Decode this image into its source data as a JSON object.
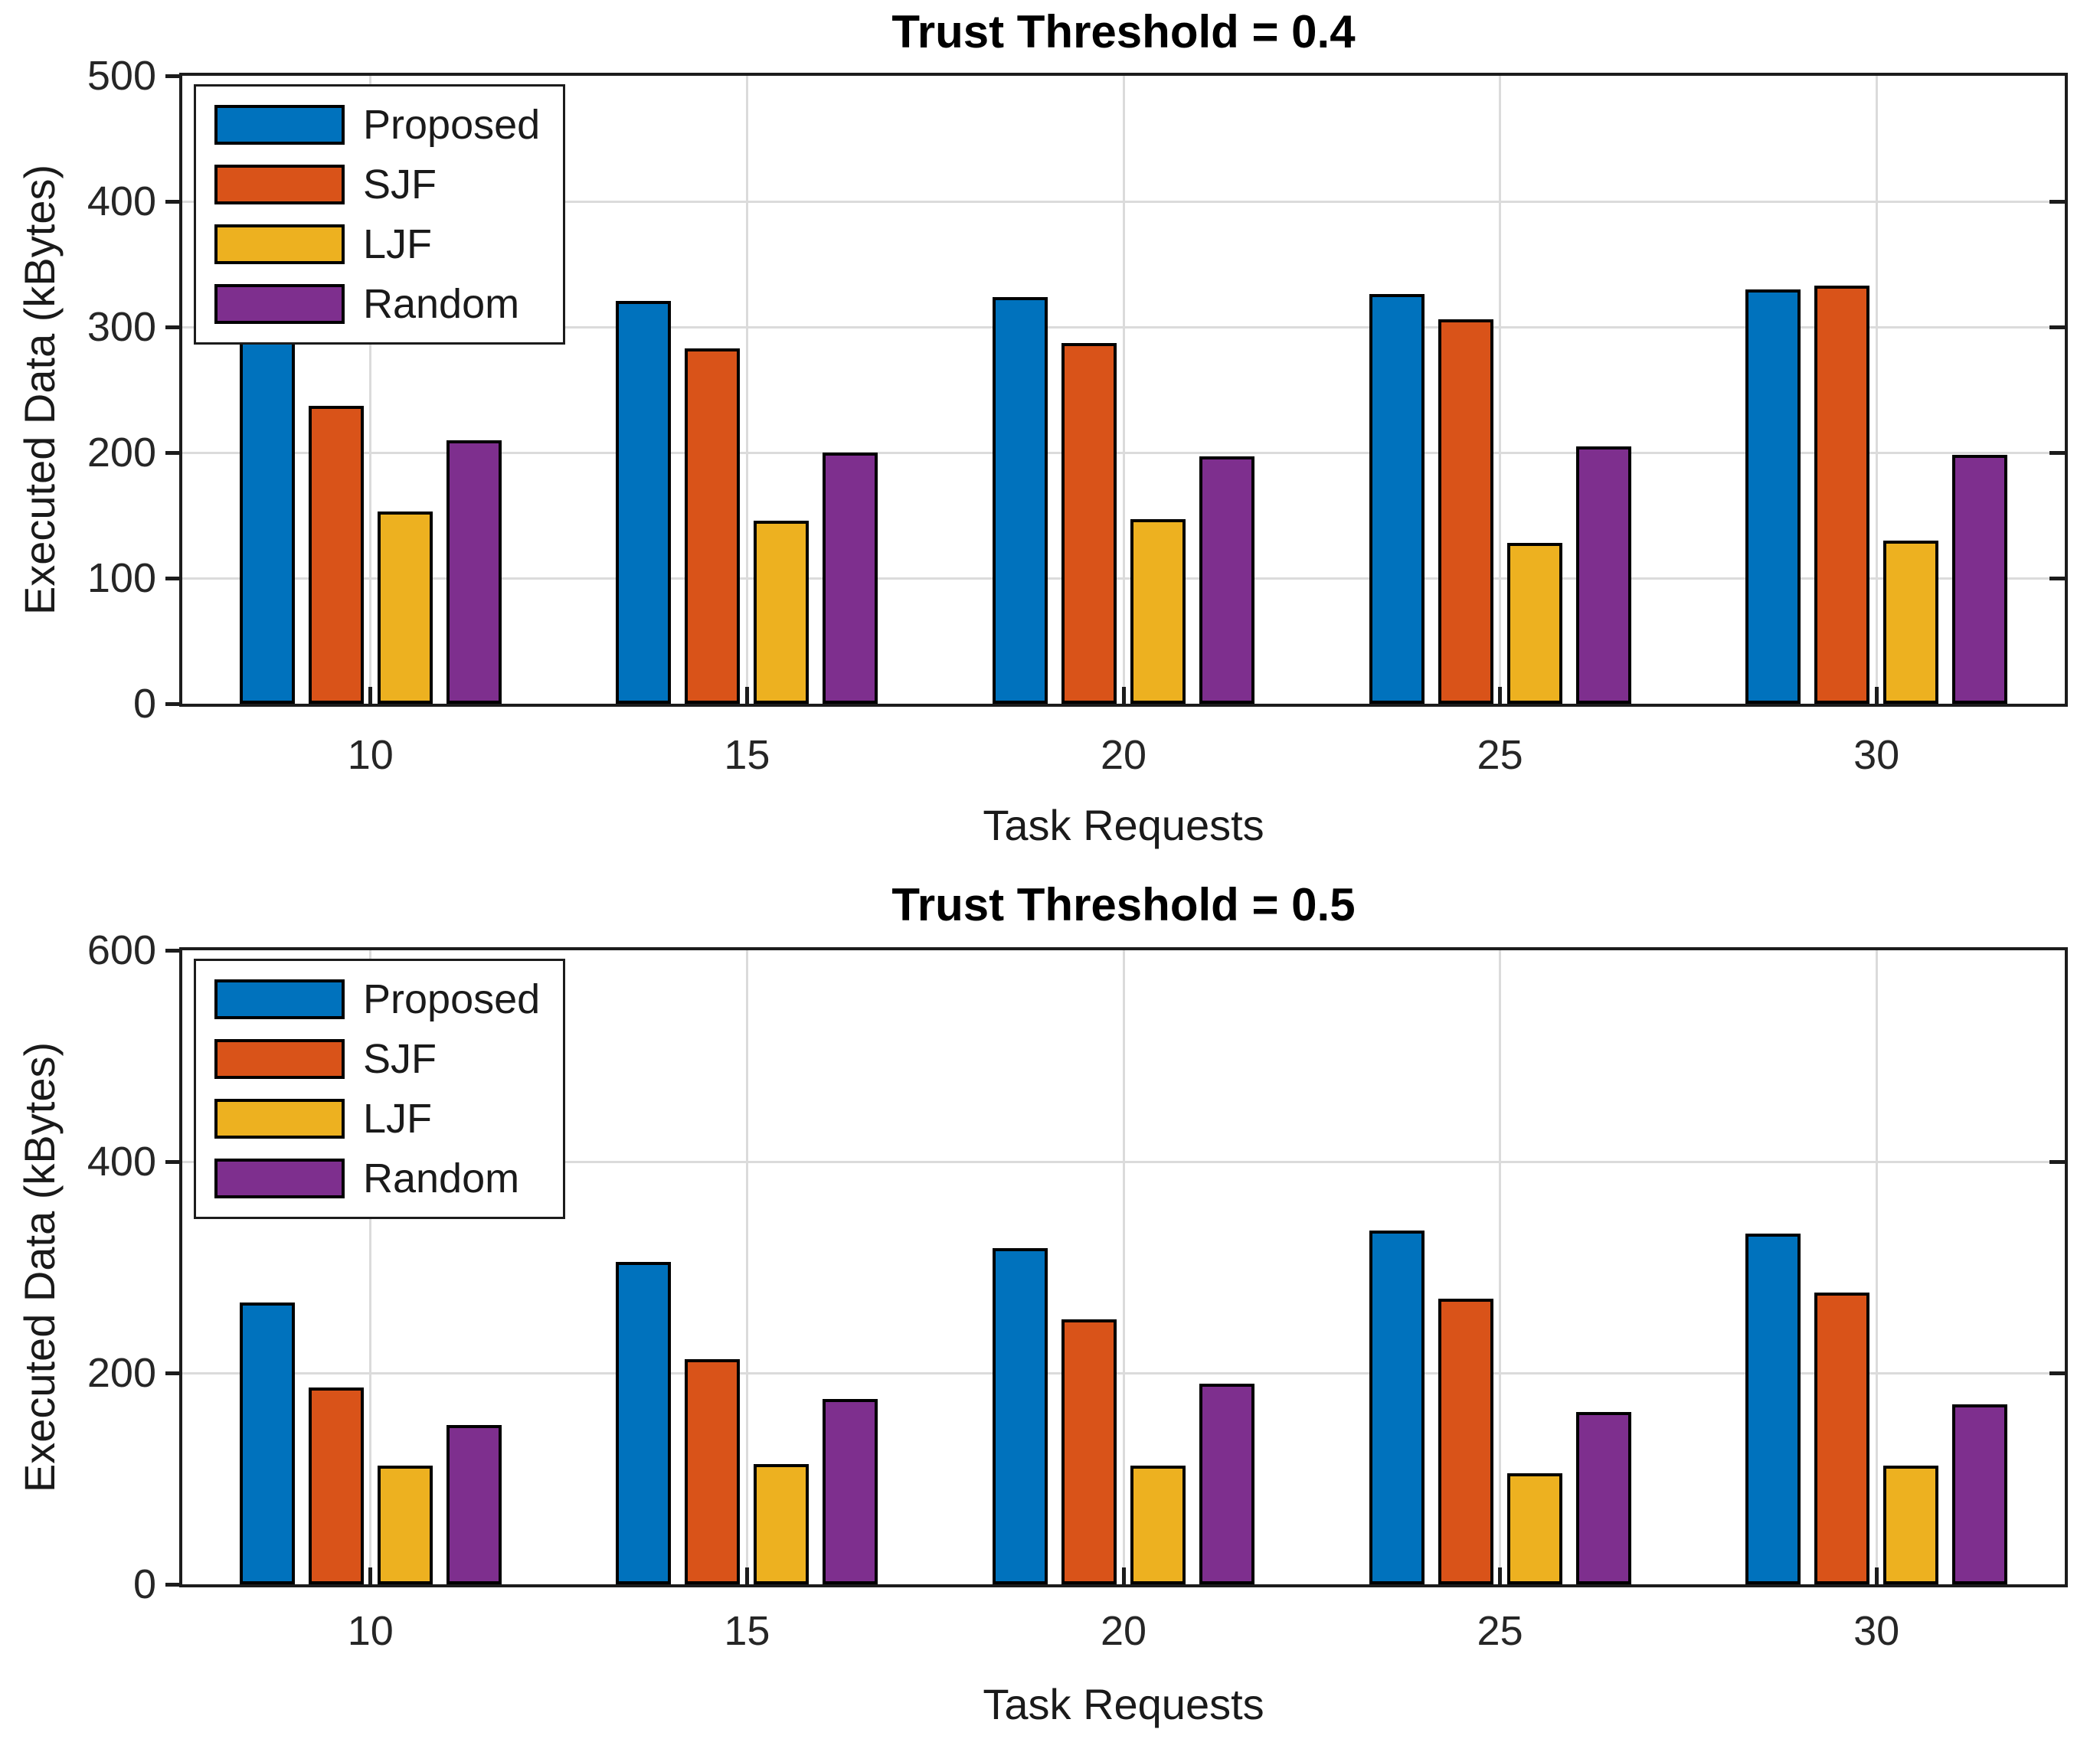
{
  "figure": {
    "background": "#ffffff",
    "grid_color": "#dbdbdb",
    "axis_color": "#1c1c1c",
    "bar_edge_color": "#000000"
  },
  "chart_data": [
    {
      "type": "bar",
      "title": "Trust Threshold = 0.4",
      "xlabel": "Task Requests",
      "ylabel": "Executed Data (kBytes)",
      "ylim": [
        0,
        500
      ],
      "yticks": [
        0,
        100,
        200,
        300,
        400,
        500
      ],
      "categories": [
        "10",
        "15",
        "20",
        "25",
        "30"
      ],
      "grid": true,
      "legend_position": "upper-left",
      "series": [
        {
          "name": "Proposed",
          "color": "#0072BD",
          "values": [
            303,
            321,
            324,
            326,
            330
          ]
        },
        {
          "name": "SJF",
          "color": "#D95319",
          "values": [
            237,
            283,
            287,
            306,
            333
          ]
        },
        {
          "name": "LJF",
          "color": "#EDB120",
          "values": [
            153,
            146,
            147,
            128,
            130
          ]
        },
        {
          "name": "Random",
          "color": "#7E2F8E",
          "values": [
            210,
            200,
            197,
            205,
            198
          ]
        }
      ]
    },
    {
      "type": "bar",
      "title": "Trust Threshold = 0.5",
      "xlabel": "Task Requests",
      "ylabel": "Executed Data (kBytes)",
      "ylim": [
        0,
        600
      ],
      "yticks": [
        0,
        200,
        400,
        600
      ],
      "categories": [
        "10",
        "15",
        "20",
        "25",
        "30"
      ],
      "grid": true,
      "legend_position": "upper-left",
      "series": [
        {
          "name": "Proposed",
          "color": "#0072BD",
          "values": [
            267,
            305,
            318,
            335,
            332
          ]
        },
        {
          "name": "SJF",
          "color": "#D95319",
          "values": [
            186,
            213,
            251,
            270,
            276
          ]
        },
        {
          "name": "LJF",
          "color": "#EDB120",
          "values": [
            112,
            114,
            112,
            105,
            112
          ]
        },
        {
          "name": "Random",
          "color": "#7E2F8E",
          "values": [
            151,
            175,
            190,
            163,
            170
          ]
        }
      ]
    }
  ]
}
